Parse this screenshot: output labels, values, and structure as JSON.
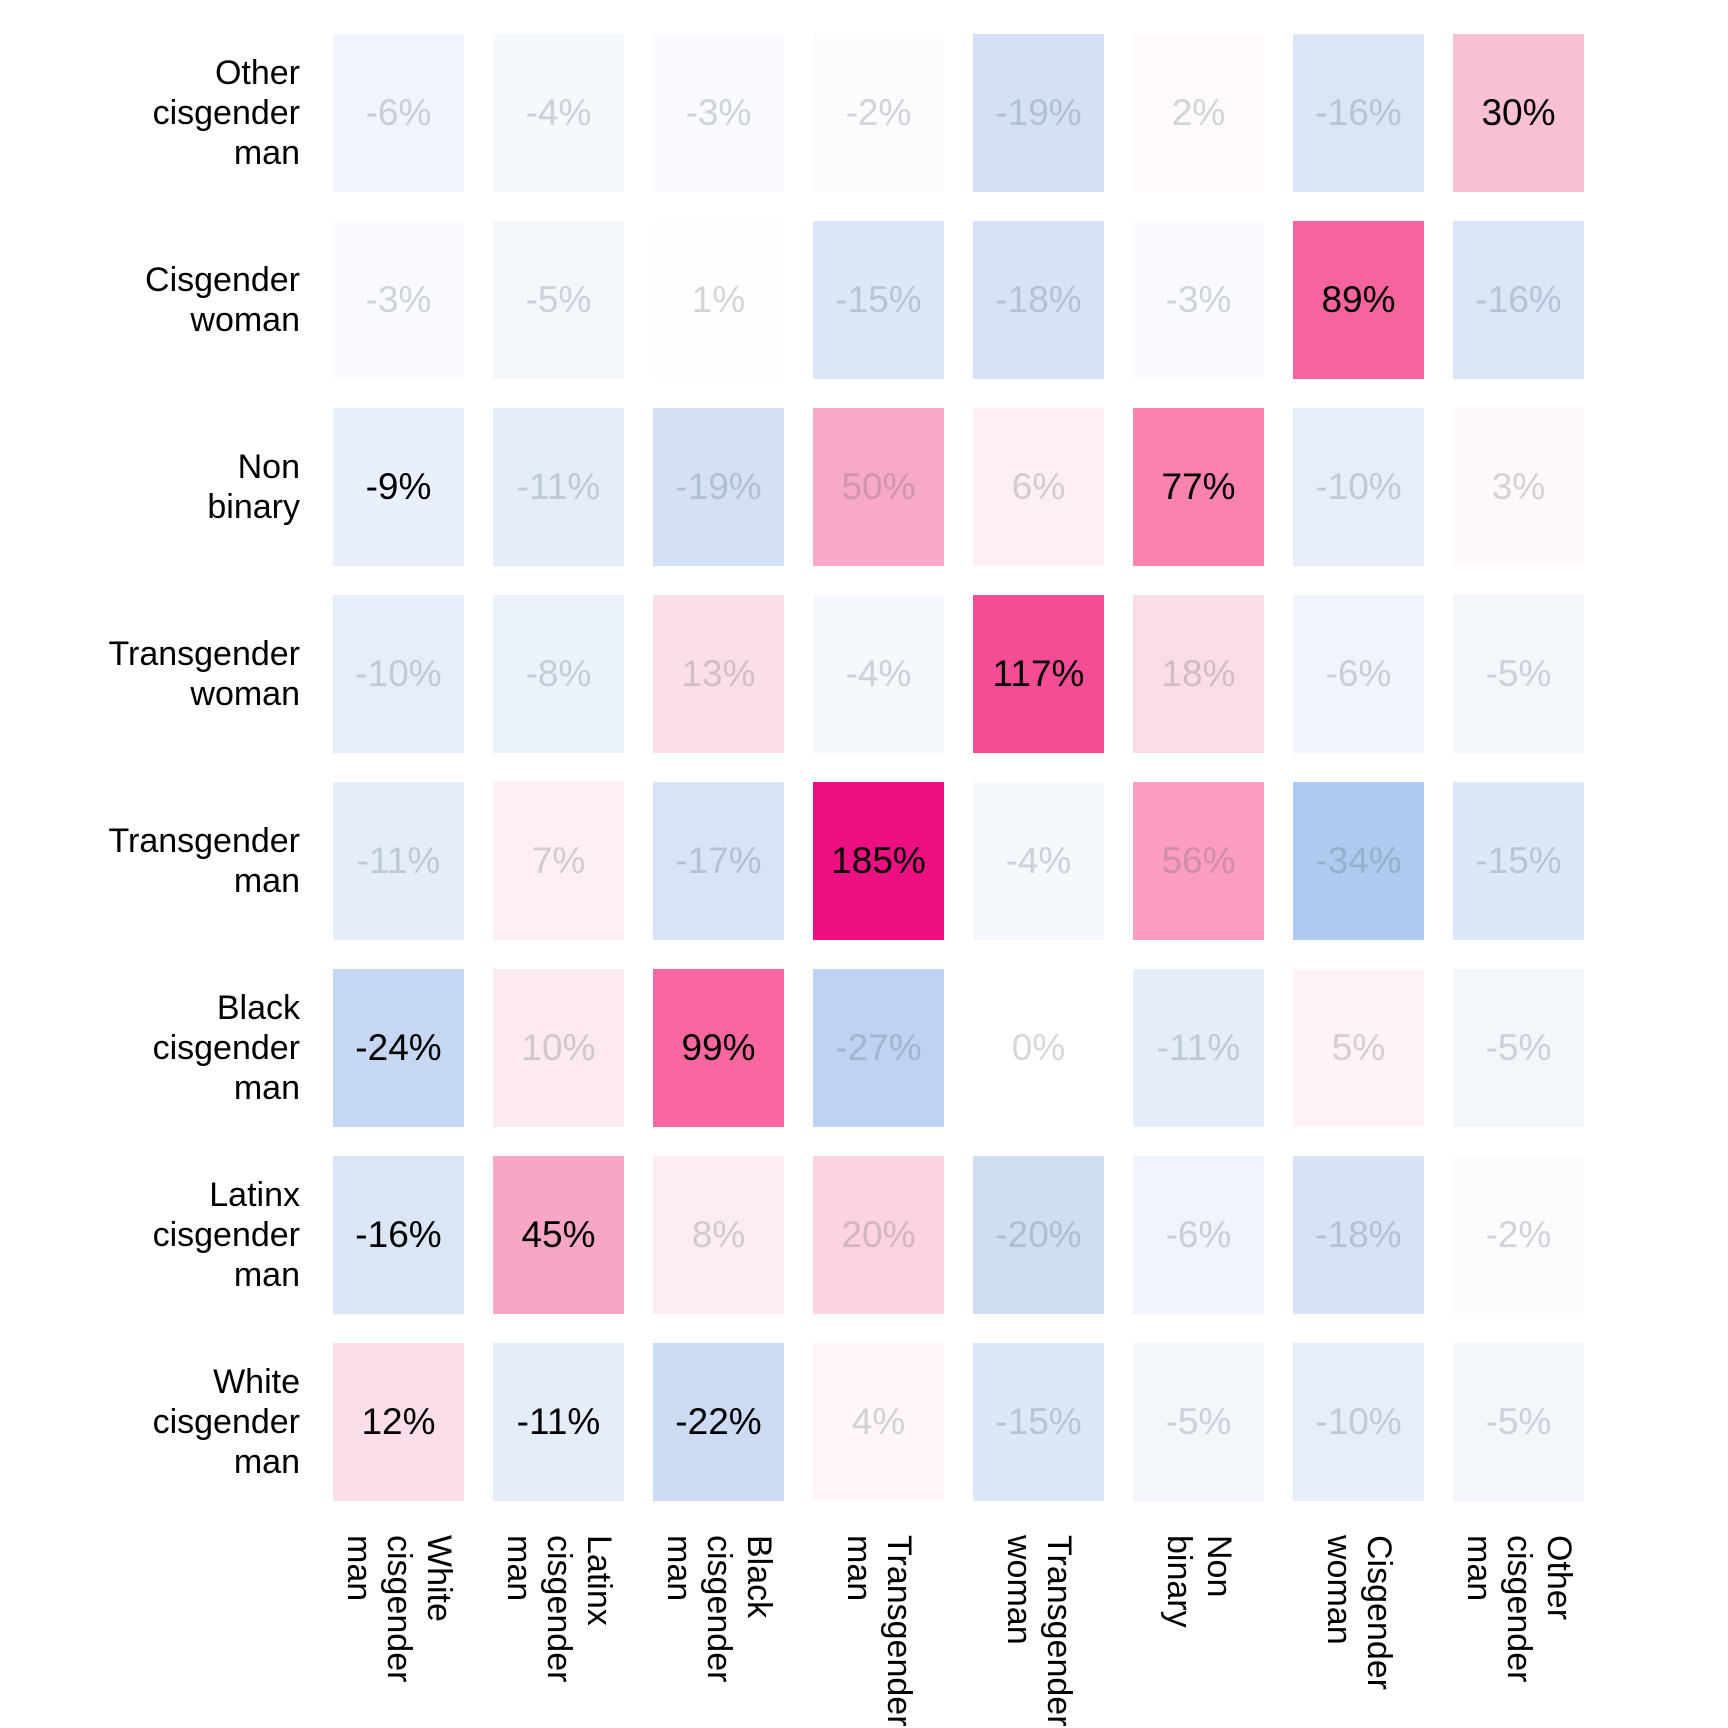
{
  "chart_data": {
    "type": "heatmap",
    "title": "",
    "xlabel": "",
    "ylabel": "",
    "grid": false,
    "legend": "none",
    "x_categories": [
      "White\ncisgender\nman",
      "Latinx\ncisgender\nman",
      "Black\ncisgender\nman",
      "Transgender\nman",
      "Transgender\nwoman",
      "Non\nbinary",
      "Cisgender\nwoman",
      "Other\ncisgender\nman"
    ],
    "y_categories": [
      "Other\ncisgender\nman",
      "Cisgender\nwoman",
      "Non\nbinary",
      "Transgender\nwoman",
      "Transgender\nman",
      "Black\ncisgender\nman",
      "Latinx\ncisgender\nman",
      "White\ncisgender\nman"
    ],
    "values": [
      [
        -6,
        -4,
        -3,
        -2,
        -19,
        2,
        -16,
        30
      ],
      [
        -3,
        -5,
        1,
        -15,
        -18,
        -3,
        89,
        -16
      ],
      [
        -9,
        -11,
        -19,
        50,
        6,
        77,
        -10,
        3
      ],
      [
        -10,
        -8,
        13,
        -4,
        117,
        18,
        -6,
        -5
      ],
      [
        -11,
        7,
        -17,
        185,
        -4,
        56,
        -34,
        -15
      ],
      [
        -24,
        10,
        99,
        -27,
        0,
        -11,
        5,
        -5
      ],
      [
        -16,
        45,
        8,
        20,
        -20,
        -6,
        -18,
        -2
      ],
      [
        12,
        -11,
        -22,
        4,
        -15,
        -5,
        -10,
        -5
      ]
    ],
    "value_suffix": "%",
    "emphasized": [
      [
        false,
        false,
        false,
        false,
        false,
        false,
        false,
        true
      ],
      [
        false,
        false,
        false,
        false,
        false,
        false,
        true,
        false
      ],
      [
        true,
        false,
        false,
        false,
        false,
        true,
        false,
        false
      ],
      [
        false,
        false,
        false,
        false,
        true,
        false,
        false,
        false
      ],
      [
        false,
        false,
        false,
        true,
        false,
        false,
        false,
        false
      ],
      [
        true,
        false,
        true,
        false,
        false,
        false,
        false,
        false
      ],
      [
        true,
        true,
        false,
        false,
        false,
        false,
        false,
        false
      ],
      [
        true,
        true,
        true,
        false,
        false,
        false,
        false,
        false
      ]
    ],
    "colors": {
      "text_emphasized": "#000000",
      "text_muted": "rgba(73,86,106,0.24)",
      "background": "#ffffff",
      "cell_color_map": {
        "-34": "#AECBEF",
        "-27": "#BED3F0",
        "-24": "#C5D7F2",
        "-22": "#CBDBF3",
        "-20": "#D0DEF4",
        "-19": "#D3E0F5",
        "-18": "#D6E2F5",
        "-17": "#D7E3F6",
        "-16": "#DAE5F6",
        "-15": "#DCE7F7",
        "-11": "#E5EDF9",
        "-10": "#E7EEF9",
        "-9": "#EAF0FA",
        "-8": "#ECF2FA",
        "-6": "#F0F4FB",
        "-5": "#F3F7FC",
        "-4": "#F5F8FC",
        "-3": "#F8FAFD",
        "-2": "#FBFCFE",
        "0": "#FFFFFF",
        "1": "#FFFDFE",
        "2": "#FEFAFB",
        "3": "#FEF8FA",
        "4": "#FEF6F8",
        "5": "#FEF3F6",
        "6": "#FDF0F4",
        "7": "#FDEFF3",
        "8": "#FDEDF2",
        "10": "#FDE9F0",
        "12": "#FBDEE9",
        "13": "#FCDEE8",
        "18": "#FCDCE6",
        "20": "#FBD3E1",
        "30": "#F9BFD4",
        "45": "#F9A6C6",
        "50": "#F9A9C8",
        "56": "#FA9DC0",
        "77": "#FA82B0",
        "89": "#F6649E",
        "99": "#F8679F",
        "117": "#F44C95",
        "185": "#ED1082"
      }
    }
  }
}
